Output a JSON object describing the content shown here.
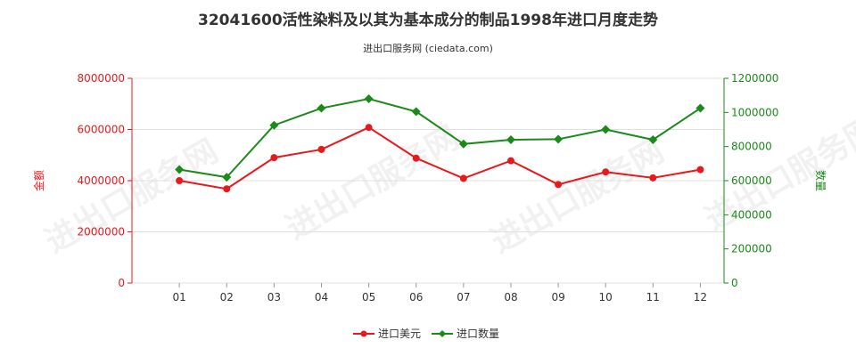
{
  "title": "32041600活性染料及以其为基本成分的制品1998年进口月度走势",
  "subtitle": "进出口服务网 (ciedata.com)",
  "watermark": "进出口服务网",
  "colors": {
    "left_axis": "#e8191c",
    "right_axis": "#1a8a1a",
    "series_value": "#e8191c",
    "series_quantity": "#1a8a1a",
    "grid": "#e0e0e0"
  },
  "chart_data": {
    "type": "line",
    "title": "32041600活性染料及以其为基本成分的制品1998年进口月度走势",
    "categories": [
      "01",
      "02",
      "03",
      "04",
      "05",
      "06",
      "07",
      "08",
      "09",
      "10",
      "11",
      "12"
    ],
    "y_left": {
      "label": "金额",
      "ylim": [
        0,
        8000000
      ],
      "ticks": [
        0,
        2000000,
        4000000,
        6000000,
        8000000
      ],
      "tick_labels": [
        "0",
        "2000000",
        "4000000",
        "6000000",
        "8000000"
      ]
    },
    "y_right": {
      "label": "数量",
      "ylim": [
        0,
        1200000
      ],
      "ticks": [
        0,
        200000,
        400000,
        600000,
        800000,
        1000000,
        1200000
      ],
      "tick_labels": [
        "0",
        "200000",
        "400000",
        "600000",
        "800000",
        "1000000",
        "1200000"
      ]
    },
    "series": [
      {
        "name": "进口美元",
        "axis": "left",
        "values": [
          4000000,
          3680000,
          4900000,
          5220000,
          6080000,
          4880000,
          4090000,
          4780000,
          3850000,
          4340000,
          4110000,
          4430000
        ]
      },
      {
        "name": "进口数量",
        "axis": "right",
        "values": [
          665000,
          620000,
          925000,
          1025000,
          1080000,
          1005000,
          815000,
          840000,
          843000,
          900000,
          840000,
          1025000
        ]
      }
    ],
    "grid": true,
    "legend_position": "bottom-center"
  }
}
